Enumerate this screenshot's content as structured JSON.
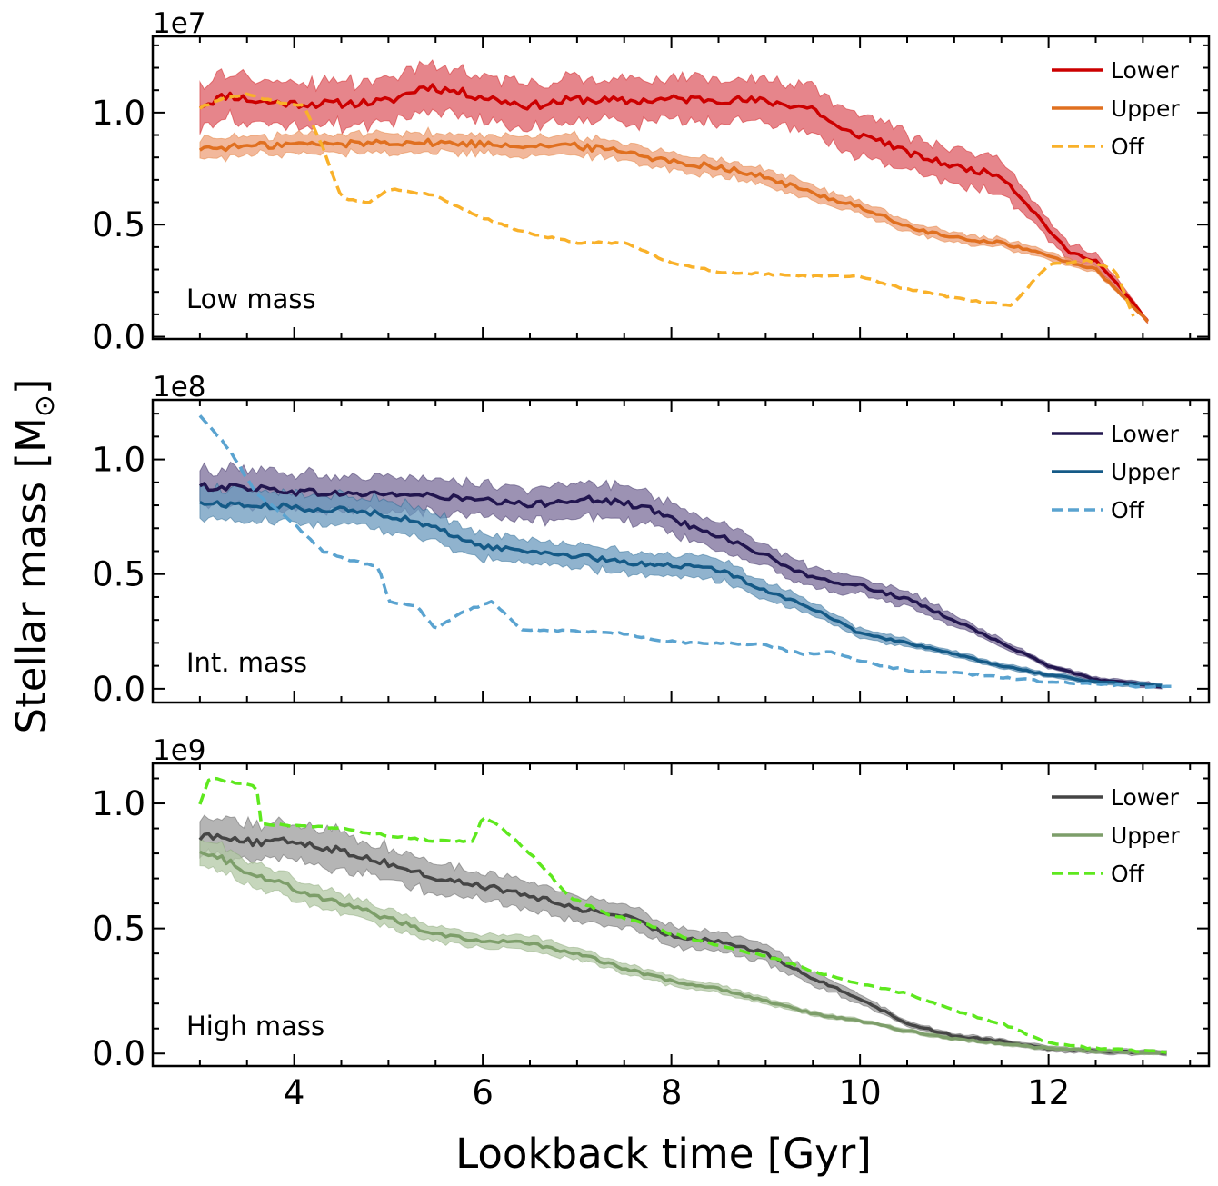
{
  "figure": {
    "xlabel": "Lookback time [Gyr]",
    "ylabel": "Stellar mass [M",
    "ylabel_sub": "⊙",
    "ylabel_close": "]"
  },
  "chart_data": [
    {
      "type": "line",
      "title": "",
      "panel_label": "Low mass",
      "offset_label": "1e7",
      "xlim": [
        2.5,
        13.7
      ],
      "ylim": [
        -0.01,
        1.34
      ],
      "xticks": [
        4,
        6,
        8,
        10,
        12
      ],
      "xtick_labels": [
        "4",
        "6",
        "8",
        "10",
        "12"
      ],
      "yticks": [
        0.0,
        0.5,
        1.0
      ],
      "ytick_labels": [
        "0.0",
        "0.5",
        "1.0"
      ],
      "show_xtick_labels": false,
      "legend": "top-right",
      "series": [
        {
          "name": "Lower",
          "color": "#cc0000",
          "dash": false,
          "band": true,
          "band_color": "#de5c64",
          "x": [
            3.0,
            3.3,
            3.6,
            4.0,
            4.5,
            5.0,
            5.4,
            6.0,
            6.5,
            7.0,
            7.5,
            8.0,
            8.5,
            9.0,
            9.5,
            9.8,
            10.2,
            10.5,
            11.0,
            11.5,
            11.8,
            12.2,
            12.5,
            12.8,
            13.05
          ],
          "y": [
            1.03,
            1.08,
            1.05,
            1.04,
            1.04,
            1.05,
            1.12,
            1.07,
            1.03,
            1.06,
            1.05,
            1.06,
            1.06,
            1.05,
            1.02,
            0.92,
            0.88,
            0.82,
            0.76,
            0.72,
            0.58,
            0.38,
            0.34,
            0.2,
            0.07
          ],
          "band_halfwidth": 0.08
        },
        {
          "name": "Upper",
          "color": "#e07020",
          "dash": false,
          "band": true,
          "band_color": "#eea07a",
          "x": [
            3.0,
            3.5,
            4.0,
            4.5,
            5.0,
            6.0,
            7.0,
            7.5,
            8.0,
            8.5,
            9.0,
            9.5,
            10.0,
            10.5,
            11.0,
            11.5,
            12.0,
            12.5,
            13.05
          ],
          "y": [
            0.84,
            0.85,
            0.86,
            0.86,
            0.87,
            0.86,
            0.85,
            0.83,
            0.78,
            0.76,
            0.71,
            0.64,
            0.58,
            0.49,
            0.44,
            0.42,
            0.36,
            0.3,
            0.07
          ],
          "band_halfwidth": 0.04
        },
        {
          "name": "Off",
          "color": "#f9b12a",
          "dash": true,
          "band": false,
          "x": [
            3.0,
            3.2,
            3.5,
            3.8,
            4.1,
            4.3,
            4.5,
            4.8,
            5.0,
            5.5,
            6.0,
            6.5,
            7.0,
            7.5,
            8.0,
            8.5,
            9.0,
            9.5,
            10.0,
            10.4,
            10.8,
            11.2,
            11.6,
            12.0,
            12.4,
            12.7,
            12.9
          ],
          "y": [
            1.02,
            1.06,
            1.08,
            1.05,
            1.03,
            0.85,
            0.62,
            0.6,
            0.66,
            0.63,
            0.53,
            0.46,
            0.42,
            0.42,
            0.33,
            0.29,
            0.28,
            0.27,
            0.27,
            0.22,
            0.19,
            0.16,
            0.14,
            0.32,
            0.34,
            0.3,
            0.09
          ]
        }
      ]
    },
    {
      "type": "line",
      "title": "",
      "panel_label": "Int. mass",
      "offset_label": "1e8",
      "xlim": [
        2.5,
        13.7
      ],
      "ylim": [
        -0.06,
        1.26
      ],
      "xticks": [
        4,
        6,
        8,
        10,
        12
      ],
      "xtick_labels": [
        "4",
        "6",
        "8",
        "10",
        "12"
      ],
      "yticks": [
        0.0,
        0.5,
        1.0
      ],
      "ytick_labels": [
        "0.0",
        "0.5",
        "1.0"
      ],
      "show_xtick_labels": false,
      "legend": "top-right",
      "series": [
        {
          "name": "Lower",
          "color": "#22164f",
          "dash": false,
          "band": true,
          "band_color": "#7b6d99",
          "x": [
            3.0,
            3.5,
            4.0,
            4.5,
            5.0,
            5.5,
            6.0,
            6.5,
            7.0,
            7.5,
            7.8,
            8.0,
            8.5,
            9.0,
            9.5,
            10.0,
            10.5,
            11.0,
            11.5,
            12.0,
            12.5,
            13.0,
            13.2
          ],
          "y": [
            0.88,
            0.88,
            0.86,
            0.85,
            0.85,
            0.84,
            0.82,
            0.8,
            0.83,
            0.81,
            0.78,
            0.74,
            0.67,
            0.58,
            0.48,
            0.45,
            0.39,
            0.3,
            0.2,
            0.1,
            0.04,
            0.02,
            0.01
          ],
          "band_halfwidth": 0.07
        },
        {
          "name": "Upper",
          "color": "#155a87",
          "dash": false,
          "band": true,
          "band_color": "#6b9abd",
          "x": [
            3.0,
            3.5,
            4.0,
            4.5,
            5.0,
            5.5,
            6.0,
            6.5,
            7.0,
            7.5,
            8.0,
            8.5,
            9.0,
            9.5,
            10.0,
            10.5,
            11.0,
            11.5,
            12.0,
            12.5,
            13.0,
            13.2
          ],
          "y": [
            0.81,
            0.8,
            0.79,
            0.78,
            0.76,
            0.7,
            0.62,
            0.6,
            0.58,
            0.55,
            0.54,
            0.52,
            0.43,
            0.35,
            0.24,
            0.2,
            0.15,
            0.1,
            0.06,
            0.03,
            0.02,
            0.01
          ],
          "band_halfwidth": 0.07
        },
        {
          "name": "Off",
          "color": "#5aa3d0",
          "dash": true,
          "band": false,
          "x": [
            3.0,
            3.3,
            3.6,
            4.0,
            4.3,
            4.6,
            4.9,
            5.0,
            5.3,
            5.5,
            5.8,
            6.1,
            6.4,
            7.0,
            7.5,
            7.9,
            8.2,
            8.5,
            9.0,
            9.4,
            9.7,
            10.0,
            10.5,
            11.0,
            11.5,
            12.0,
            12.5,
            13.0,
            13.3
          ],
          "y": [
            1.19,
            1.05,
            0.85,
            0.72,
            0.6,
            0.56,
            0.53,
            0.38,
            0.36,
            0.26,
            0.34,
            0.38,
            0.26,
            0.25,
            0.24,
            0.21,
            0.2,
            0.2,
            0.19,
            0.15,
            0.16,
            0.12,
            0.08,
            0.07,
            0.05,
            0.03,
            0.02,
            0.01,
            0.01
          ]
        }
      ]
    },
    {
      "type": "line",
      "title": "",
      "panel_label": "High mass",
      "offset_label": "1e9",
      "xlim": [
        2.5,
        13.7
      ],
      "ylim": [
        -0.05,
        1.16
      ],
      "xticks": [
        4,
        6,
        8,
        10,
        12
      ],
      "xtick_labels": [
        "4",
        "6",
        "8",
        "10",
        "12"
      ],
      "yticks": [
        0.0,
        0.5,
        1.0
      ],
      "ytick_labels": [
        "0.0",
        "0.5",
        "1.0"
      ],
      "show_xtick_labels": true,
      "legend": "top-right",
      "series": [
        {
          "name": "Lower",
          "color": "#454545",
          "dash": false,
          "band": true,
          "band_color": "#9c9c9c",
          "x": [
            3.0,
            3.3,
            3.6,
            4.0,
            4.5,
            5.0,
            5.5,
            6.0,
            6.5,
            7.0,
            7.5,
            8.0,
            8.5,
            9.0,
            9.5,
            10.0,
            10.5,
            11.0,
            11.5,
            12.0,
            12.5,
            13.0,
            13.25
          ],
          "y": [
            0.87,
            0.87,
            0.84,
            0.85,
            0.81,
            0.76,
            0.7,
            0.67,
            0.63,
            0.58,
            0.55,
            0.47,
            0.45,
            0.4,
            0.3,
            0.22,
            0.12,
            0.07,
            0.05,
            0.02,
            0.01,
            0.005,
            0.003
          ],
          "band_halfwidth": 0.07
        },
        {
          "name": "Upper",
          "color": "#7d9e6a",
          "dash": false,
          "band": true,
          "band_color": "#b3c8a6",
          "x": [
            3.0,
            3.5,
            4.0,
            4.5,
            5.0,
            5.5,
            6.0,
            6.5,
            7.0,
            7.5,
            8.0,
            8.5,
            9.0,
            9.5,
            10.0,
            10.5,
            11.0,
            11.5,
            12.0,
            12.5,
            13.0,
            13.25
          ],
          "y": [
            0.82,
            0.73,
            0.66,
            0.6,
            0.54,
            0.48,
            0.45,
            0.44,
            0.4,
            0.34,
            0.29,
            0.26,
            0.21,
            0.16,
            0.13,
            0.09,
            0.06,
            0.04,
            0.02,
            0.01,
            0.005,
            0.003
          ],
          "band_halfwidth": 0.05
        },
        {
          "name": "Off",
          "color": "#5ee81e",
          "dash": true,
          "band": false,
          "x": [
            3.0,
            3.1,
            3.6,
            3.65,
            4.0,
            4.5,
            5.0,
            5.5,
            5.9,
            6.0,
            6.2,
            6.5,
            6.7,
            6.9,
            7.3,
            7.7,
            8.0,
            8.5,
            9.0,
            9.5,
            10.0,
            10.5,
            11.0,
            11.5,
            12.0,
            12.5,
            13.0,
            13.25
          ],
          "y": [
            1.0,
            1.1,
            1.07,
            0.92,
            0.91,
            0.9,
            0.87,
            0.85,
            0.85,
            0.95,
            0.9,
            0.8,
            0.72,
            0.63,
            0.56,
            0.52,
            0.48,
            0.43,
            0.39,
            0.33,
            0.28,
            0.24,
            0.17,
            0.12,
            0.04,
            0.02,
            0.01,
            0.005
          ]
        }
      ]
    }
  ]
}
